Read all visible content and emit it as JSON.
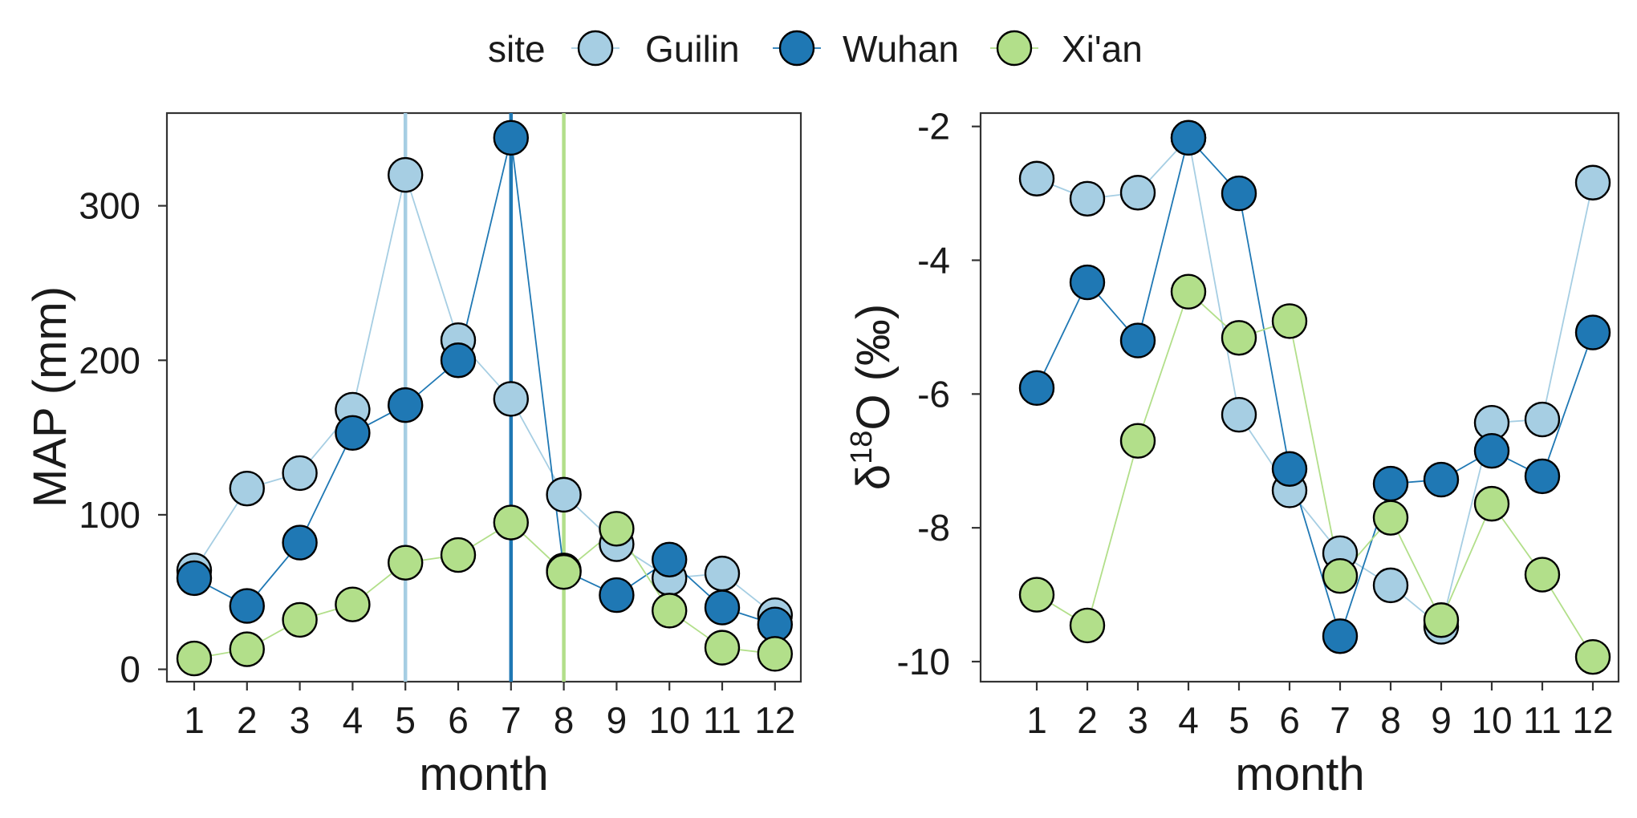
{
  "legend": {
    "title": "site",
    "items": [
      {
        "name": "Guilin",
        "color": "#a6cee3"
      },
      {
        "name": "Wuhan",
        "color": "#1f78b4"
      },
      {
        "name": "Xi'an",
        "color": "#b2df8a"
      }
    ]
  },
  "chart_data": [
    {
      "type": "line",
      "panel": "left",
      "xlabel": "month",
      "ylabel": "MAP (mm)",
      "ylim": [
        -8,
        360
      ],
      "yticks": [
        0,
        100,
        200,
        300
      ],
      "x": [
        1,
        2,
        3,
        4,
        5,
        6,
        7,
        8,
        9,
        10,
        11,
        12
      ],
      "series": [
        {
          "name": "Guilin",
          "color": "#a6cee3",
          "values": [
            64,
            117,
            127,
            168,
            320,
            213,
            175,
            113,
            81,
            59,
            62,
            35
          ]
        },
        {
          "name": "Wuhan",
          "color": "#1f78b4",
          "values": [
            59,
            41,
            82,
            153,
            171,
            200,
            344,
            64,
            48,
            71,
            40,
            29
          ]
        },
        {
          "name": "Xi'an",
          "color": "#b2df8a",
          "values": [
            7,
            13,
            32,
            42,
            69,
            74,
            95,
            63,
            91,
            38,
            14,
            10
          ]
        }
      ],
      "vlines": [
        {
          "x": 5,
          "color": "#a6cee3"
        },
        {
          "x": 7,
          "color": "#1f78b4"
        },
        {
          "x": 8,
          "color": "#b2df8a"
        }
      ],
      "grid": false
    },
    {
      "type": "line",
      "panel": "right",
      "xlabel": "month",
      "ylabel_symbol": "δ",
      "ylabel_superscript": "18",
      "ylabel_main": "O (‰)",
      "ylim": [
        -10.3,
        -1.8
      ],
      "yticks": [
        -10,
        -8,
        -6,
        -4,
        -2
      ],
      "x": [
        1,
        2,
        3,
        4,
        5,
        6,
        7,
        8,
        9,
        10,
        11,
        12
      ],
      "series": [
        {
          "name": "Guilin",
          "color": "#a6cee3",
          "values": [
            -2.78,
            -3.08,
            -2.99,
            -2.17,
            -6.31,
            -7.44,
            -8.38,
            -8.86,
            -9.48,
            -6.43,
            -6.38,
            -2.84
          ]
        },
        {
          "name": "Wuhan",
          "color": "#1f78b4",
          "values": [
            -5.91,
            -4.33,
            -5.2,
            -2.17,
            -3.0,
            -7.12,
            -9.62,
            -7.34,
            -7.28,
            -6.85,
            -7.23,
            -5.08
          ]
        },
        {
          "name": "Xi'an",
          "color": "#b2df8a",
          "values": [
            -9.0,
            -9.46,
            -6.7,
            -4.47,
            -5.16,
            -4.91,
            -8.72,
            -7.85,
            -9.38,
            -7.64,
            -8.7,
            -9.93
          ]
        }
      ],
      "grid": false
    }
  ]
}
